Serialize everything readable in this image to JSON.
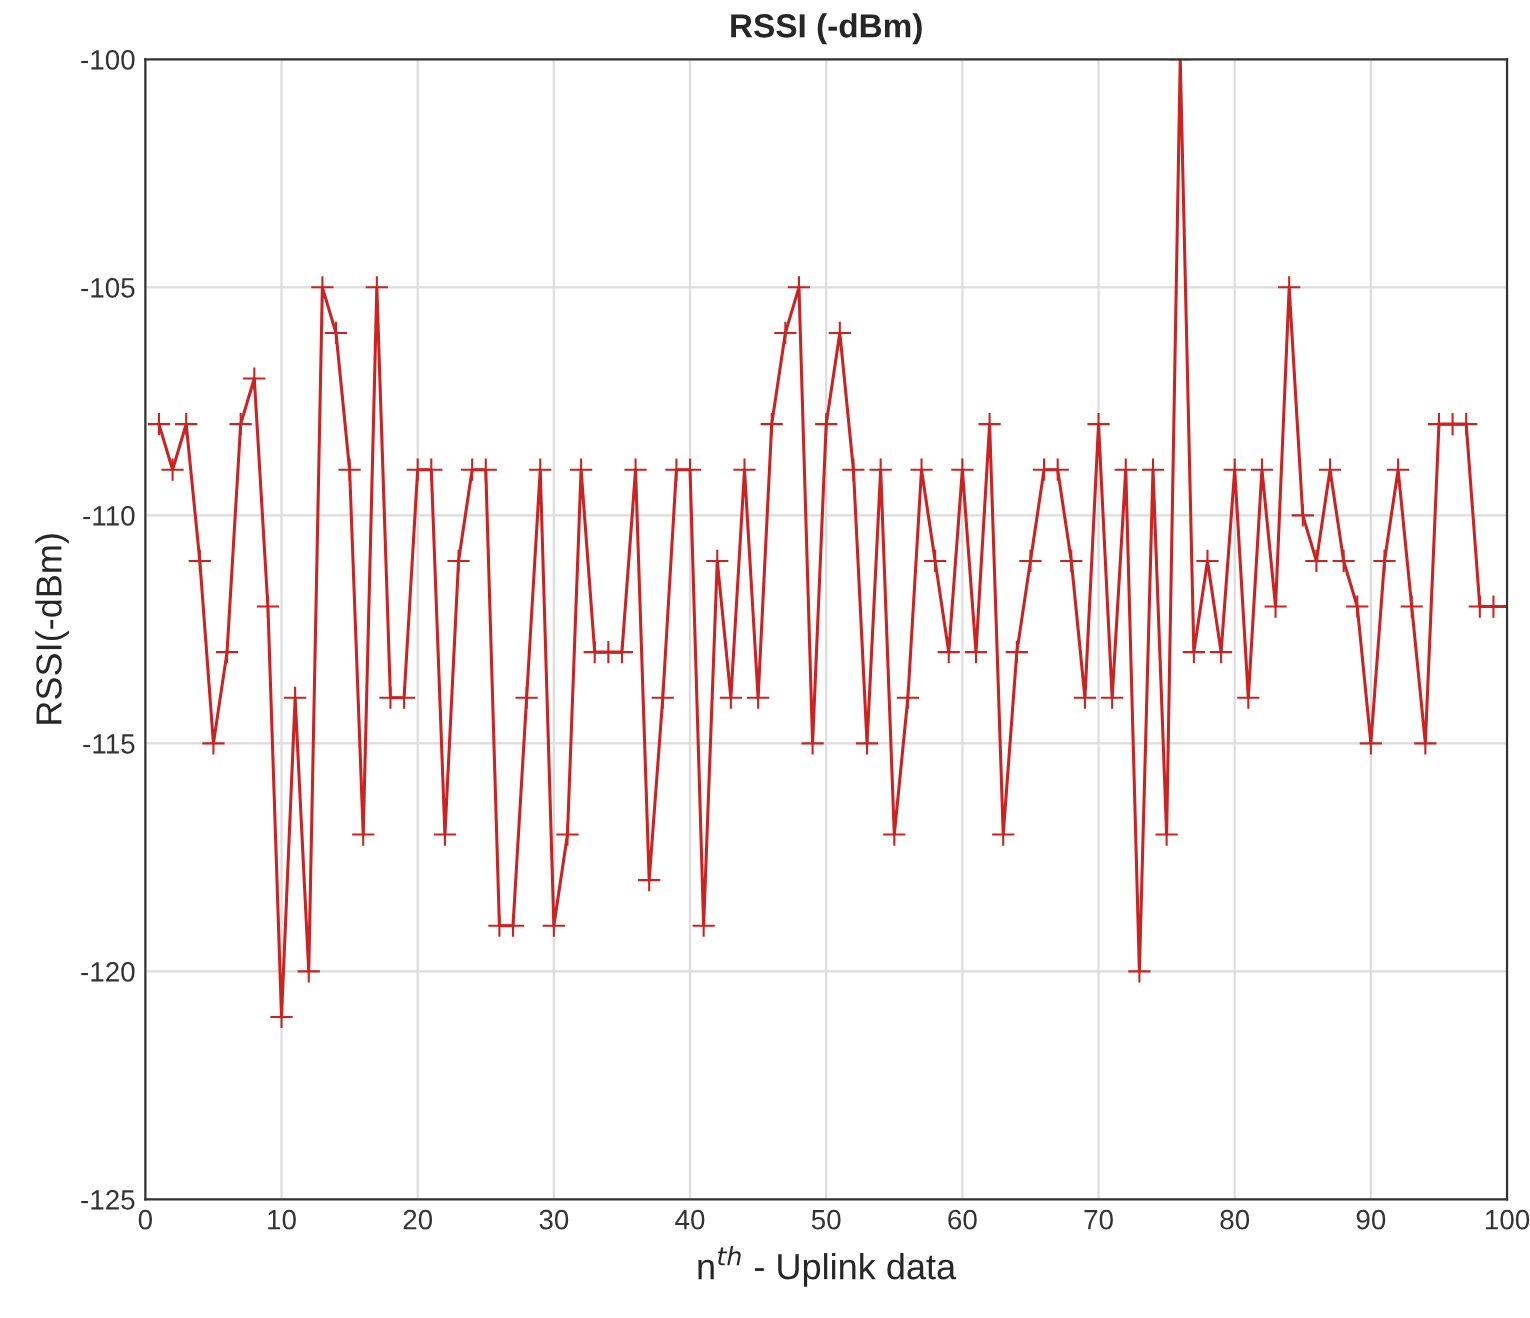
{
  "chart_data": {
    "type": "line",
    "title": "RSSI (-dBm)",
    "xlabel": "n$^{th}$ - Uplink data",
    "ylabel": "RSSI(-dBm)",
    "x": [
      1,
      2,
      3,
      4,
      5,
      6,
      7,
      8,
      9,
      10,
      11,
      12,
      13,
      14,
      15,
      16,
      17,
      18,
      19,
      20,
      21,
      22,
      23,
      24,
      25,
      26,
      27,
      28,
      29,
      30,
      31,
      32,
      33,
      34,
      35,
      36,
      37,
      38,
      39,
      40,
      41,
      42,
      43,
      44,
      45,
      46,
      47,
      48,
      49,
      50,
      51,
      52,
      53,
      54,
      55,
      56,
      57,
      58,
      59,
      60,
      61,
      62,
      63,
      64,
      65,
      66,
      67,
      68,
      69,
      70,
      71,
      72,
      73,
      74,
      75,
      76,
      77,
      78,
      79,
      80,
      81,
      82,
      83,
      84,
      85,
      86,
      87,
      88,
      89,
      90,
      91,
      92,
      93,
      94,
      95,
      96,
      97,
      98,
      99,
      100
    ],
    "series": [
      {
        "color": "#cc2222",
        "values": [
          -108,
          -109,
          -108,
          -111,
          -115,
          -113,
          -108,
          -107,
          -112,
          -121,
          -114,
          -120,
          -105,
          -106,
          -109,
          -117,
          -105,
          -114,
          -114,
          -109,
          -109,
          -117,
          -111,
          -109,
          -109,
          -119,
          -119,
          -114,
          -109,
          -119,
          -117,
          -109,
          -113,
          -113,
          -113,
          -109,
          -118,
          -114,
          -109,
          -109,
          -119,
          -111,
          -114,
          -109,
          -114,
          -108,
          -106,
          -105,
          -115,
          -108,
          -106,
          -109,
          -115,
          -109,
          -117,
          -114,
          -109,
          -111,
          -113,
          -109,
          -113,
          -108,
          -117,
          -113,
          -111,
          -109,
          -109,
          -111,
          -114,
          -108,
          -114,
          -109,
          -120,
          -109,
          -117,
          -100,
          -113,
          -111,
          -113,
          -109,
          -114,
          -109,
          -112,
          -105,
          -110,
          -111,
          -109,
          -111,
          -112,
          -115,
          -111,
          -109,
          -112,
          -115,
          -108,
          -108,
          -108,
          -112,
          -112,
          -112
        ]
      }
    ],
    "xlim": [
      0,
      100
    ],
    "xticks": [
      0,
      10,
      20,
      30,
      40,
      50,
      60,
      70,
      80,
      90,
      100
    ],
    "ylim": [
      -125,
      -100
    ],
    "yticks": [
      -125,
      -120,
      -115,
      -110,
      -105,
      -100
    ],
    "grid": true,
    "marker": "cross",
    "line_style": "solid"
  }
}
